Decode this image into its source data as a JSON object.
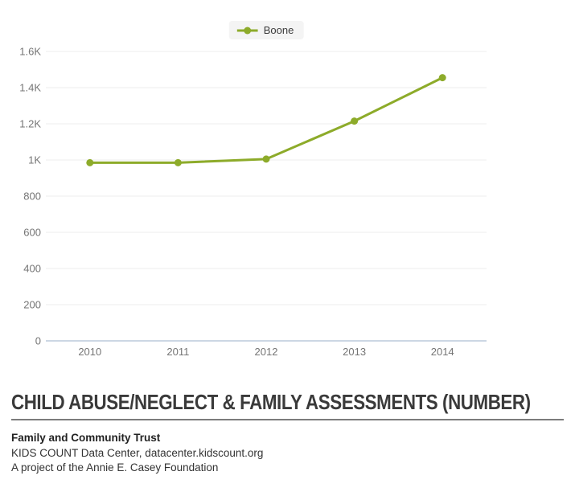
{
  "chart_data": {
    "type": "line",
    "categories": [
      "2010",
      "2011",
      "2012",
      "2013",
      "2014"
    ],
    "series": [
      {
        "name": "Boone",
        "color": "#8dab2a",
        "values": [
          985,
          985,
          1005,
          1215,
          1455
        ]
      }
    ],
    "ylim": [
      0,
      1600
    ],
    "yticks": [
      {
        "value": 0,
        "label": "0"
      },
      {
        "value": 200,
        "label": "200"
      },
      {
        "value": 400,
        "label": "400"
      },
      {
        "value": 600,
        "label": "600"
      },
      {
        "value": 800,
        "label": "800"
      },
      {
        "value": 1000,
        "label": "1K"
      },
      {
        "value": 1200,
        "label": "1.2K"
      },
      {
        "value": 1400,
        "label": "1.4K"
      },
      {
        "value": 1600,
        "label": "1.6K"
      }
    ],
    "grid": true,
    "legend_position": "top-center",
    "title": "CHILD ABUSE/NEGLECT & FAMILY ASSESSMENTS (NUMBER)",
    "xlabel": "",
    "ylabel": ""
  },
  "title": {
    "text": "CHILD ABUSE/NEGLECT & FAMILY ASSESSMENTS (NUMBER)"
  },
  "footer": {
    "org": "Family and Community Trust",
    "source": "KIDS COUNT Data Center, datacenter.kidscount.org",
    "project": "A project of the Annie E. Casey Foundation"
  },
  "colors": {
    "accent": "#8dab2a",
    "gridline": "#ececec",
    "axis_line": "#ccd7e4",
    "tick_label": "#757575",
    "legend_bg": "#f4f4f4",
    "title_text": "#3a3a3a",
    "rule": "#7c7c7c",
    "body_text": "#333333"
  }
}
